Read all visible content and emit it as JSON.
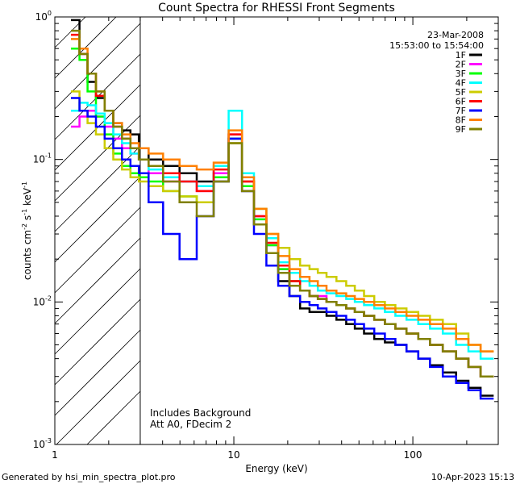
{
  "chart_data": {
    "type": "line",
    "title": "Count Spectra for RHESSI Front Segments",
    "xlabel": "Energy (keV)",
    "ylabel_parts": {
      "a": "counts cm",
      "b": "-2",
      "c": " s",
      "d": "-1",
      "e": " keV",
      "f": "-1"
    },
    "xscale": "log",
    "yscale": "log",
    "xlim": [
      1,
      300
    ],
    "ylim": [
      0.001,
      1
    ],
    "x_ticks": [
      {
        "v": 1,
        "label": "1"
      },
      {
        "v": 10,
        "label": "10"
      },
      {
        "v": 100,
        "label": "100"
      }
    ],
    "y_ticks": [
      {
        "v": 1,
        "m": "10",
        "e": "0"
      },
      {
        "v": 0.1,
        "m": "10",
        "e": "-1"
      },
      {
        "v": 0.01,
        "m": "10",
        "e": "-2"
      },
      {
        "v": 0.001,
        "m": "10",
        "e": "-3"
      }
    ],
    "date": "23-Mar-2008",
    "time_range": "15:53:00 to 15:54:00",
    "shaded_region_max_energy": 3,
    "annotation_lines": [
      "Includes Background",
      "Att A0, FDecim 2"
    ],
    "footer_left": "Generated by hsi_min_spectra_plot.pro",
    "footer_right": "10-Apr-2023 15:13",
    "series": [
      {
        "name": "1F",
        "color": "#000000",
        "values": [
          0.95,
          0.55,
          0.35,
          0.27,
          0.22,
          0.18,
          0.16,
          0.15,
          0.12,
          0.1,
          0.09,
          0.08,
          0.07,
          0.08,
          0.14,
          0.06,
          0.035,
          0.022,
          0.014,
          0.011,
          0.009,
          0.0085,
          0.0085,
          0.008,
          0.0075,
          0.007,
          0.0065,
          0.006,
          0.0055,
          0.0052,
          0.005,
          0.0045,
          0.004,
          0.0036,
          0.0032,
          0.0028,
          0.0025,
          0.0022
        ]
      },
      {
        "name": "2F",
        "color": "#ff00ff",
        "values": [
          0.17,
          0.2,
          0.22,
          0.2,
          0.17,
          0.14,
          0.12,
          0.11,
          0.1,
          0.08,
          0.07,
          0.07,
          0.06,
          0.08,
          0.15,
          0.07,
          0.04,
          0.025,
          0.017,
          0.014,
          0.012,
          0.011,
          0.011,
          0.01,
          0.0095,
          0.009,
          0.0085,
          0.008,
          0.0075,
          0.007,
          0.0065,
          0.006,
          0.0055,
          0.005,
          0.0045,
          0.004,
          0.0035,
          0.003
        ]
      },
      {
        "name": "3F",
        "color": "#00ff00",
        "values": [
          0.6,
          0.5,
          0.3,
          0.2,
          0.15,
          0.11,
          0.09,
          0.08,
          0.075,
          0.07,
          0.06,
          0.055,
          0.05,
          0.075,
          0.14,
          0.065,
          0.038,
          0.025,
          0.017,
          0.014,
          0.012,
          0.011,
          0.0105,
          0.01,
          0.0095,
          0.009,
          0.0085,
          0.008,
          0.0075,
          0.007,
          0.0065,
          0.006,
          0.0055,
          0.005,
          0.0045,
          0.004,
          0.0035,
          0.003
        ]
      },
      {
        "name": "4F",
        "color": "#00ffff",
        "values": [
          0.22,
          0.25,
          0.24,
          0.21,
          0.18,
          0.15,
          0.13,
          0.11,
          0.1,
          0.085,
          0.075,
          0.07,
          0.065,
          0.09,
          0.22,
          0.08,
          0.045,
          0.028,
          0.019,
          0.016,
          0.014,
          0.013,
          0.012,
          0.0115,
          0.011,
          0.0105,
          0.01,
          0.0095,
          0.009,
          0.0085,
          0.008,
          0.0075,
          0.007,
          0.0065,
          0.006,
          0.005,
          0.0045,
          0.004
        ]
      },
      {
        "name": "5F",
        "color": "#cccc00",
        "values": [
          0.3,
          0.22,
          0.18,
          0.15,
          0.12,
          0.1,
          0.085,
          0.075,
          0.07,
          0.065,
          0.06,
          0.055,
          0.05,
          0.07,
          0.13,
          0.07,
          0.045,
          0.03,
          0.024,
          0.02,
          0.018,
          0.017,
          0.016,
          0.015,
          0.014,
          0.013,
          0.012,
          0.011,
          0.01,
          0.0095,
          0.009,
          0.0085,
          0.008,
          0.0075,
          0.007,
          0.006,
          0.005,
          0.0045
        ]
      },
      {
        "name": "6F",
        "color": "#ff0000",
        "values": [
          0.75,
          0.55,
          0.4,
          0.28,
          0.22,
          0.17,
          0.14,
          0.12,
          0.1,
          0.09,
          0.08,
          0.07,
          0.06,
          0.085,
          0.15,
          0.07,
          0.04,
          0.026,
          0.018,
          0.014,
          0.012,
          0.011,
          0.0105,
          0.01,
          0.0095,
          0.009,
          0.0085,
          0.008,
          0.0075,
          0.007,
          0.0065,
          0.006,
          0.0055,
          0.005,
          0.0045,
          0.004,
          0.0035,
          0.003
        ]
      },
      {
        "name": "7F",
        "color": "#0000ff",
        "values": [
          0.27,
          0.22,
          0.2,
          0.17,
          0.14,
          0.12,
          0.1,
          0.09,
          0.08,
          0.05,
          0.03,
          0.02,
          0.04,
          0.07,
          0.14,
          0.06,
          0.03,
          0.018,
          0.013,
          0.011,
          0.01,
          0.0095,
          0.009,
          0.0085,
          0.008,
          0.0075,
          0.007,
          0.0065,
          0.006,
          0.0055,
          0.005,
          0.0045,
          0.004,
          0.0035,
          0.003,
          0.0027,
          0.0024,
          0.0021
        ]
      },
      {
        "name": "8F",
        "color": "#ff8000",
        "values": [
          0.7,
          0.6,
          0.4,
          0.3,
          0.22,
          0.18,
          0.15,
          0.13,
          0.12,
          0.11,
          0.1,
          0.09,
          0.085,
          0.095,
          0.16,
          0.075,
          0.045,
          0.03,
          0.021,
          0.017,
          0.015,
          0.014,
          0.013,
          0.012,
          0.0115,
          0.011,
          0.0105,
          0.01,
          0.0095,
          0.009,
          0.0085,
          0.008,
          0.0075,
          0.007,
          0.0065,
          0.0055,
          0.005,
          0.0045
        ]
      },
      {
        "name": "9F",
        "color": "#808000",
        "values": [
          0.8,
          0.55,
          0.4,
          0.3,
          0.22,
          0.17,
          0.14,
          0.12,
          0.1,
          0.09,
          0.07,
          0.05,
          0.04,
          0.07,
          0.13,
          0.06,
          0.035,
          0.022,
          0.016,
          0.013,
          0.012,
          0.011,
          0.0105,
          0.01,
          0.0095,
          0.009,
          0.0085,
          0.008,
          0.0075,
          0.007,
          0.0065,
          0.006,
          0.0055,
          0.005,
          0.0045,
          0.004,
          0.0035,
          0.003
        ]
      }
    ],
    "energy_bins": [
      1.3,
      1.45,
      1.6,
      1.8,
      2.0,
      2.25,
      2.5,
      2.8,
      3.1,
      3.6,
      4.5,
      5.5,
      7,
      8.5,
      10.3,
      12,
      14,
      16.5,
      19,
      22,
      25,
      28,
      31,
      35,
      40,
      45,
      50,
      57,
      65,
      75,
      85,
      100,
      115,
      135,
      160,
      190,
      220,
      260
    ]
  }
}
